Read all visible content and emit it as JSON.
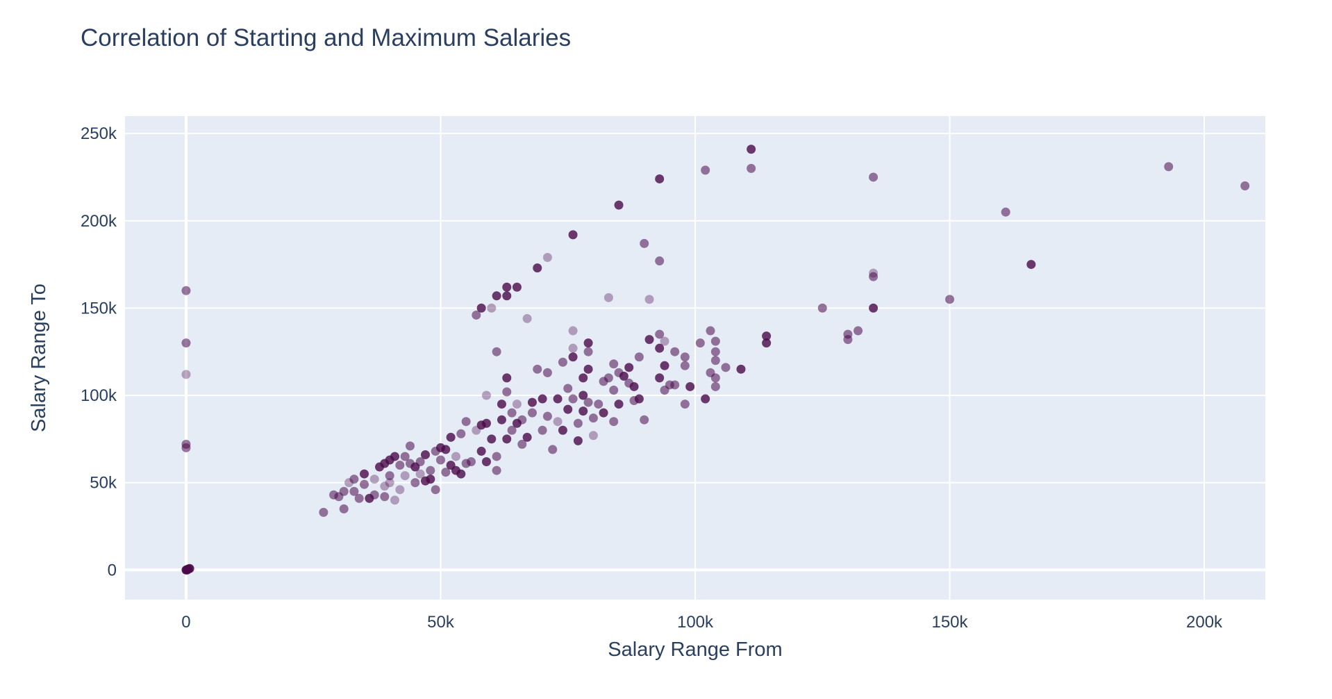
{
  "chart_data": {
    "type": "scatter",
    "title": "Correlation of Starting and Maximum Salaries",
    "xlabel": "Salary Range From",
    "ylabel": "Salary Range To",
    "xlim": [
      -12000,
      212000
    ],
    "ylim": [
      -17000,
      260000
    ],
    "x_ticks": [
      {
        "value": 0,
        "label": "0"
      },
      {
        "value": 50000,
        "label": "50k"
      },
      {
        "value": 100000,
        "label": "100k"
      },
      {
        "value": 150000,
        "label": "150k"
      },
      {
        "value": 200000,
        "label": "200k"
      }
    ],
    "y_ticks": [
      {
        "value": 0,
        "label": "0"
      },
      {
        "value": 50000,
        "label": "50k"
      },
      {
        "value": 100000,
        "label": "100k"
      },
      {
        "value": 150000,
        "label": "150k"
      },
      {
        "value": 200000,
        "label": "200k"
      },
      {
        "value": 250000,
        "label": "250k"
      }
    ],
    "grid": true,
    "legend": "none",
    "colors": {
      "plot_background": "#e5ecf6",
      "marker": "#4a0a4a",
      "text": "#2a3f5f"
    },
    "points": [
      [
        0,
        0,
        0.9
      ],
      [
        200,
        0,
        0.9
      ],
      [
        400,
        500,
        0.9
      ],
      [
        700,
        800,
        0.9
      ],
      [
        0,
        160000,
        0.55
      ],
      [
        0,
        130000,
        0.55
      ],
      [
        0,
        112000,
        0.35
      ],
      [
        0,
        72000,
        0.55
      ],
      [
        0,
        70000,
        0.55
      ],
      [
        27000,
        33000,
        0.55
      ],
      [
        29000,
        43000,
        0.55
      ],
      [
        30000,
        42000,
        0.55
      ],
      [
        31000,
        35000,
        0.55
      ],
      [
        31000,
        45000,
        0.55
      ],
      [
        32000,
        50000,
        0.35
      ],
      [
        33000,
        45000,
        0.55
      ],
      [
        33000,
        52000,
        0.55
      ],
      [
        34000,
        41000,
        0.55
      ],
      [
        35000,
        49000,
        0.55
      ],
      [
        35000,
        55000,
        0.8
      ],
      [
        36000,
        41000,
        0.8
      ],
      [
        37000,
        52000,
        0.35
      ],
      [
        37000,
        43000,
        0.55
      ],
      [
        38000,
        59000,
        0.8
      ],
      [
        39000,
        48000,
        0.35
      ],
      [
        39000,
        42000,
        0.55
      ],
      [
        39000,
        61000,
        0.8
      ],
      [
        40000,
        63000,
        0.8
      ],
      [
        40000,
        54000,
        0.55
      ],
      [
        40000,
        50000,
        0.35
      ],
      [
        41000,
        65000,
        0.8
      ],
      [
        41000,
        40000,
        0.35
      ],
      [
        42000,
        60000,
        0.55
      ],
      [
        42000,
        46000,
        0.35
      ],
      [
        43000,
        65000,
        0.55
      ],
      [
        43000,
        54000,
        0.35
      ],
      [
        44000,
        71000,
        0.55
      ],
      [
        44000,
        61000,
        0.55
      ],
      [
        45000,
        50000,
        0.55
      ],
      [
        45000,
        59000,
        0.8
      ],
      [
        46000,
        62000,
        0.55
      ],
      [
        46000,
        55000,
        0.35
      ],
      [
        47000,
        66000,
        0.8
      ],
      [
        47000,
        51000,
        0.8
      ],
      [
        48000,
        57000,
        0.55
      ],
      [
        48000,
        52000,
        0.8
      ],
      [
        49000,
        46000,
        0.55
      ],
      [
        49000,
        68000,
        0.55
      ],
      [
        50000,
        63000,
        0.55
      ],
      [
        50000,
        70000,
        0.8
      ],
      [
        51000,
        56000,
        0.55
      ],
      [
        51000,
        69000,
        0.8
      ],
      [
        52000,
        76000,
        0.8
      ],
      [
        52000,
        60000,
        0.8
      ],
      [
        53000,
        57000,
        0.8
      ],
      [
        53000,
        65000,
        0.35
      ],
      [
        54000,
        55000,
        0.8
      ],
      [
        54000,
        78000,
        0.55
      ],
      [
        55000,
        85000,
        0.55
      ],
      [
        55000,
        61000,
        0.55
      ],
      [
        56000,
        62000,
        0.55
      ],
      [
        57000,
        146000,
        0.55
      ],
      [
        57000,
        80000,
        0.35
      ],
      [
        58000,
        83000,
        0.8
      ],
      [
        58000,
        68000,
        0.8
      ],
      [
        58000,
        150000,
        0.8
      ],
      [
        59000,
        62000,
        0.8
      ],
      [
        59000,
        84000,
        0.8
      ],
      [
        59000,
        100000,
        0.35
      ],
      [
        60000,
        150000,
        0.35
      ],
      [
        60000,
        75000,
        0.8
      ],
      [
        61000,
        57000,
        0.55
      ],
      [
        61000,
        125000,
        0.55
      ],
      [
        61000,
        157000,
        0.8
      ],
      [
        61000,
        65000,
        0.55
      ],
      [
        62000,
        86000,
        0.8
      ],
      [
        62000,
        95000,
        0.8
      ],
      [
        63000,
        75000,
        0.8
      ],
      [
        63000,
        157000,
        0.8
      ],
      [
        63000,
        162000,
        0.8
      ],
      [
        63000,
        110000,
        0.8
      ],
      [
        63000,
        102000,
        0.55
      ],
      [
        64000,
        90000,
        0.55
      ],
      [
        64000,
        80000,
        0.55
      ],
      [
        65000,
        162000,
        0.8
      ],
      [
        65000,
        84000,
        0.8
      ],
      [
        65000,
        95000,
        0.35
      ],
      [
        66000,
        86000,
        0.55
      ],
      [
        66000,
        72000,
        0.55
      ],
      [
        67000,
        144000,
        0.35
      ],
      [
        67000,
        76000,
        0.8
      ],
      [
        68000,
        96000,
        0.8
      ],
      [
        68000,
        90000,
        0.55
      ],
      [
        69000,
        173000,
        0.8
      ],
      [
        69000,
        115000,
        0.55
      ],
      [
        70000,
        98000,
        0.8
      ],
      [
        70000,
        80000,
        0.55
      ],
      [
        71000,
        179000,
        0.35
      ],
      [
        71000,
        113000,
        0.55
      ],
      [
        71000,
        88000,
        0.55
      ],
      [
        72000,
        69000,
        0.55
      ],
      [
        73000,
        98000,
        0.8
      ],
      [
        73000,
        85000,
        0.35
      ],
      [
        74000,
        119000,
        0.55
      ],
      [
        74000,
        80000,
        0.8
      ],
      [
        75000,
        104000,
        0.55
      ],
      [
        75000,
        92000,
        0.8
      ],
      [
        76000,
        192000,
        0.8
      ],
      [
        76000,
        137000,
        0.35
      ],
      [
        76000,
        122000,
        0.8
      ],
      [
        76000,
        127000,
        0.35
      ],
      [
        76000,
        98000,
        0.55
      ],
      [
        77000,
        84000,
        0.55
      ],
      [
        77000,
        74000,
        0.8
      ],
      [
        78000,
        110000,
        0.8
      ],
      [
        78000,
        100000,
        0.8
      ],
      [
        78000,
        91000,
        0.8
      ],
      [
        79000,
        125000,
        0.55
      ],
      [
        79000,
        130000,
        0.8
      ],
      [
        79000,
        115000,
        0.8
      ],
      [
        79000,
        96000,
        0.55
      ],
      [
        80000,
        87000,
        0.55
      ],
      [
        80000,
        77000,
        0.35
      ],
      [
        81000,
        95000,
        0.55
      ],
      [
        82000,
        90000,
        0.8
      ],
      [
        82000,
        108000,
        0.55
      ],
      [
        83000,
        156000,
        0.35
      ],
      [
        83000,
        110000,
        0.55
      ],
      [
        84000,
        118000,
        0.55
      ],
      [
        84000,
        103000,
        0.55
      ],
      [
        84000,
        85000,
        0.55
      ],
      [
        85000,
        209000,
        0.8
      ],
      [
        85000,
        113000,
        0.55
      ],
      [
        85000,
        95000,
        0.8
      ],
      [
        86000,
        111000,
        0.8
      ],
      [
        87000,
        116000,
        0.8
      ],
      [
        87000,
        107000,
        0.55
      ],
      [
        88000,
        97000,
        0.55
      ],
      [
        88000,
        105000,
        0.8
      ],
      [
        89000,
        98000,
        0.8
      ],
      [
        89000,
        122000,
        0.55
      ],
      [
        90000,
        187000,
        0.55
      ],
      [
        90000,
        86000,
        0.55
      ],
      [
        91000,
        155000,
        0.35
      ],
      [
        91000,
        132000,
        0.8
      ],
      [
        93000,
        224000,
        0.8
      ],
      [
        93000,
        177000,
        0.55
      ],
      [
        93000,
        135000,
        0.55
      ],
      [
        93000,
        127000,
        0.8
      ],
      [
        93000,
        110000,
        0.8
      ],
      [
        94000,
        131000,
        0.35
      ],
      [
        94000,
        117000,
        0.8
      ],
      [
        94000,
        103000,
        0.55
      ],
      [
        95000,
        106000,
        0.55
      ],
      [
        96000,
        125000,
        0.55
      ],
      [
        96000,
        106000,
        0.55
      ],
      [
        98000,
        122000,
        0.55
      ],
      [
        98000,
        117000,
        0.55
      ],
      [
        98000,
        95000,
        0.55
      ],
      [
        99000,
        105000,
        0.8
      ],
      [
        101000,
        130000,
        0.55
      ],
      [
        102000,
        229000,
        0.55
      ],
      [
        102000,
        98000,
        0.8
      ],
      [
        103000,
        137000,
        0.55
      ],
      [
        103000,
        113000,
        0.55
      ],
      [
        104000,
        131000,
        0.55
      ],
      [
        104000,
        125000,
        0.55
      ],
      [
        104000,
        120000,
        0.55
      ],
      [
        104000,
        110000,
        0.55
      ],
      [
        104000,
        105000,
        0.55
      ],
      [
        106000,
        116000,
        0.55
      ],
      [
        109000,
        115000,
        0.8
      ],
      [
        111000,
        241000,
        0.8
      ],
      [
        111000,
        230000,
        0.55
      ],
      [
        114000,
        134000,
        0.8
      ],
      [
        114000,
        130000,
        0.8
      ],
      [
        125000,
        150000,
        0.55
      ],
      [
        130000,
        135000,
        0.55
      ],
      [
        130000,
        132000,
        0.55
      ],
      [
        132000,
        137000,
        0.55
      ],
      [
        135000,
        225000,
        0.55
      ],
      [
        135000,
        170000,
        0.35
      ],
      [
        135000,
        168000,
        0.55
      ],
      [
        135000,
        150000,
        0.8
      ],
      [
        150000,
        155000,
        0.55
      ],
      [
        161000,
        205000,
        0.55
      ],
      [
        166000,
        175000,
        0.8
      ],
      [
        193000,
        231000,
        0.55
      ],
      [
        208000,
        220000,
        0.55
      ]
    ]
  }
}
